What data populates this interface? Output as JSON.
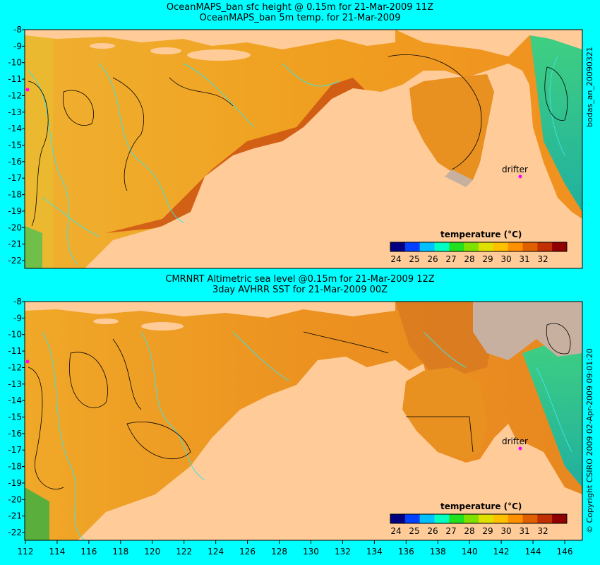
{
  "panels": [
    {
      "title_line1": "OceanMAPS_ban sfc height @ 0.15m for 21-Mar-2009 11Z",
      "title_line2": "OceanMAPS_ban 5m temp. for 21-Mar-2009",
      "side_label": "bodas_an_20090321",
      "drifter_label": "drifter",
      "colorbar_title": "temperature (°C)"
    },
    {
      "title_line1": "CMRNRT Altimetric sea level  @0.15m  for 21-Mar-2009 12Z",
      "title_line2": "3day AVHRR SST for 21-Mar-2009 00Z",
      "side_label": "© Copyright CSIRO 2009  02-Apr-2009 09:01:20",
      "drifter_label": "drifter",
      "colorbar_title": "temperature (°C)"
    }
  ],
  "axes": {
    "x_ticks": [
      "112",
      "114",
      "116",
      "118",
      "120",
      "122",
      "124",
      "126",
      "128",
      "130",
      "132",
      "134",
      "136",
      "138",
      "140",
      "142",
      "144",
      "146"
    ],
    "y_ticks": [
      "-8",
      "-9",
      "-10",
      "-11",
      "-12",
      "-13",
      "-14",
      "-15",
      "-16",
      "-17",
      "-18",
      "-19",
      "-20",
      "-21",
      "-22"
    ]
  },
  "colorbar": {
    "ticks": [
      "24",
      "25",
      "26",
      "27",
      "28",
      "29",
      "30",
      "31",
      "32"
    ],
    "colors": [
      "#000080",
      "#0040ff",
      "#00c0ff",
      "#00ffc0",
      "#20e020",
      "#80e000",
      "#e0e000",
      "#ffc000",
      "#ff9000",
      "#e06000",
      "#c03000",
      "#900000"
    ]
  },
  "colors": {
    "background": "#00ffff",
    "land": "#ffcc99",
    "ocean_warm": "#f0a020",
    "ocean_hot": "#c04010",
    "contour": "#40e0e0",
    "drifter": "#ff00ff",
    "no_data": "#c8b0a0"
  }
}
